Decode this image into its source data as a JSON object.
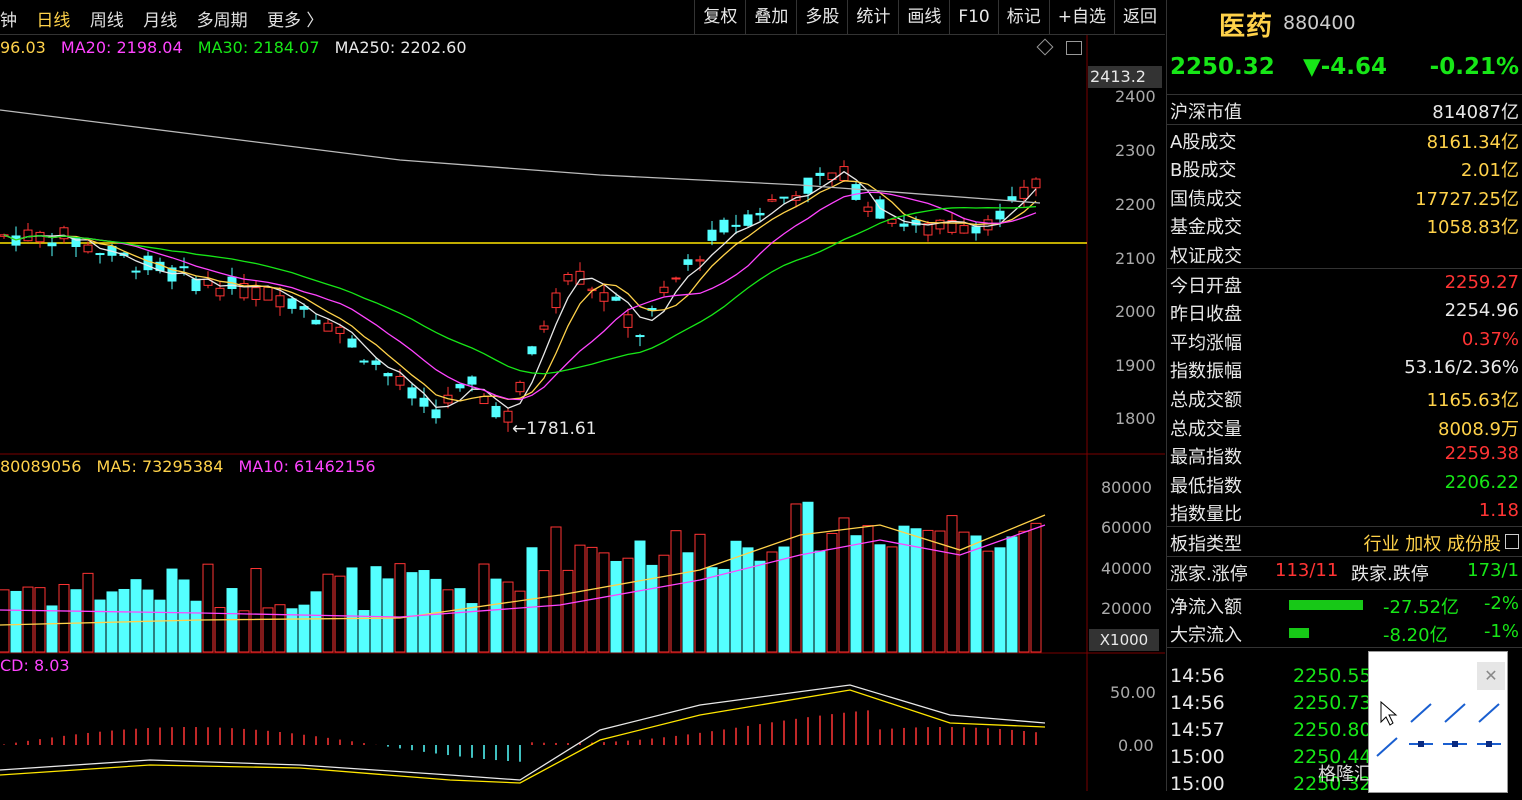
{
  "toolbar": {
    "left_tabs": [
      "钟",
      "日线",
      "周线",
      "月线",
      "多周期",
      "更多 〉"
    ],
    "right_buttons": [
      "复权",
      "叠加",
      "多股",
      "统计",
      "画线",
      "F10",
      "标记",
      "+自选",
      "返回"
    ]
  },
  "main_chart": {
    "ma_legend": [
      {
        "text": "96.03",
        "color": "#ffd24a"
      },
      {
        "text": "MA20: 2198.04",
        "color": "#ff44ff"
      },
      {
        "text": "MA30: 2184.07",
        "color": "#17e617"
      },
      {
        "text": "MA250: 2202.60",
        "color": "#e8e8e8"
      }
    ],
    "axis_top_label": "2413.2",
    "y_ticks": [
      "2400",
      "2300",
      "2200",
      "2100",
      "2000",
      "1900",
      "1800"
    ],
    "low_label": "←1781.61"
  },
  "volume_chart": {
    "legend": [
      {
        "text": "80089056",
        "color": "#ffd24a"
      },
      {
        "text": "MA5: 73295384",
        "color": "#ffd24a"
      },
      {
        "text": "MA10: 61462156",
        "color": "#ff44ff"
      }
    ],
    "y_ticks": [
      "80000",
      "60000",
      "40000",
      "20000"
    ],
    "unit": "X1000"
  },
  "macd_chart": {
    "legend": "CD: 8.03",
    "y_ticks": [
      "50.00",
      "0.00"
    ]
  },
  "chart_data": {
    "type": "candlestick",
    "ylim": [
      1750,
      2413.2
    ],
    "ma_values": {
      "MA20": 2198.04,
      "MA30": 2184.07,
      "MA250": 2202.6
    },
    "low_point": 1781.61,
    "volume_ylim": [
      0,
      85000
    ],
    "macd_ylim": [
      -30,
      60
    ]
  },
  "panel": {
    "name": "医药",
    "code": "880400",
    "price": "2250.32",
    "change": "▼-4.64",
    "change_pct": "-0.21%",
    "rows1": [
      {
        "label": "沪深市值",
        "value": "814087亿",
        "color": "white"
      },
      {
        "label": "A股成交",
        "value": "8161.34亿",
        "color": "yellow"
      },
      {
        "label": "B股成交",
        "value": "2.01亿",
        "color": "yellow"
      },
      {
        "label": "国债成交",
        "value": "17727.25亿",
        "color": "yellow"
      },
      {
        "label": "基金成交",
        "value": "1058.83亿",
        "color": "yellow"
      },
      {
        "label": "权证成交",
        "value": "",
        "color": "yellow"
      }
    ],
    "rows2": [
      {
        "label": "今日开盘",
        "value": "2259.27",
        "color": "red"
      },
      {
        "label": "昨日收盘",
        "value": "2254.96",
        "color": "white"
      },
      {
        "label": "平均涨幅",
        "value": "0.37%",
        "color": "red"
      },
      {
        "label": "指数振幅",
        "value": "53.16/2.36%",
        "color": "white"
      },
      {
        "label": "总成交额",
        "value": "1165.63亿",
        "color": "yellow"
      },
      {
        "label": "总成交量",
        "value": "8008.9万",
        "color": "yellow"
      },
      {
        "label": "最高指数",
        "value": "2259.38",
        "color": "red"
      },
      {
        "label": "最低指数",
        "value": "2206.22",
        "color": "green"
      },
      {
        "label": "指数量比",
        "value": "1.18",
        "color": "red"
      }
    ],
    "board_type": {
      "label": "板指类型",
      "value": "行业 加权 成份股"
    },
    "updown": {
      "up_label": "涨家.涨停",
      "up_value": "113/11",
      "down_label": "跌家.跌停",
      "down_value": "173/1"
    },
    "flows": [
      {
        "label": "净流入额",
        "value": "-27.52亿",
        "pct": "-2%"
      },
      {
        "label": "大宗流入",
        "value": "-8.20亿",
        "pct": "-1%"
      }
    ],
    "ticks": [
      {
        "time": "14:56",
        "price": "2250.55"
      },
      {
        "time": "14:56",
        "price": "2250.73"
      },
      {
        "time": "14:57",
        "price": "2250.80"
      },
      {
        "time": "15:00",
        "price": "2250.44"
      },
      {
        "time": "15:00",
        "price": "2250.32"
      }
    ]
  },
  "watermark": "格隆汇 @朱俊湿梁"
}
